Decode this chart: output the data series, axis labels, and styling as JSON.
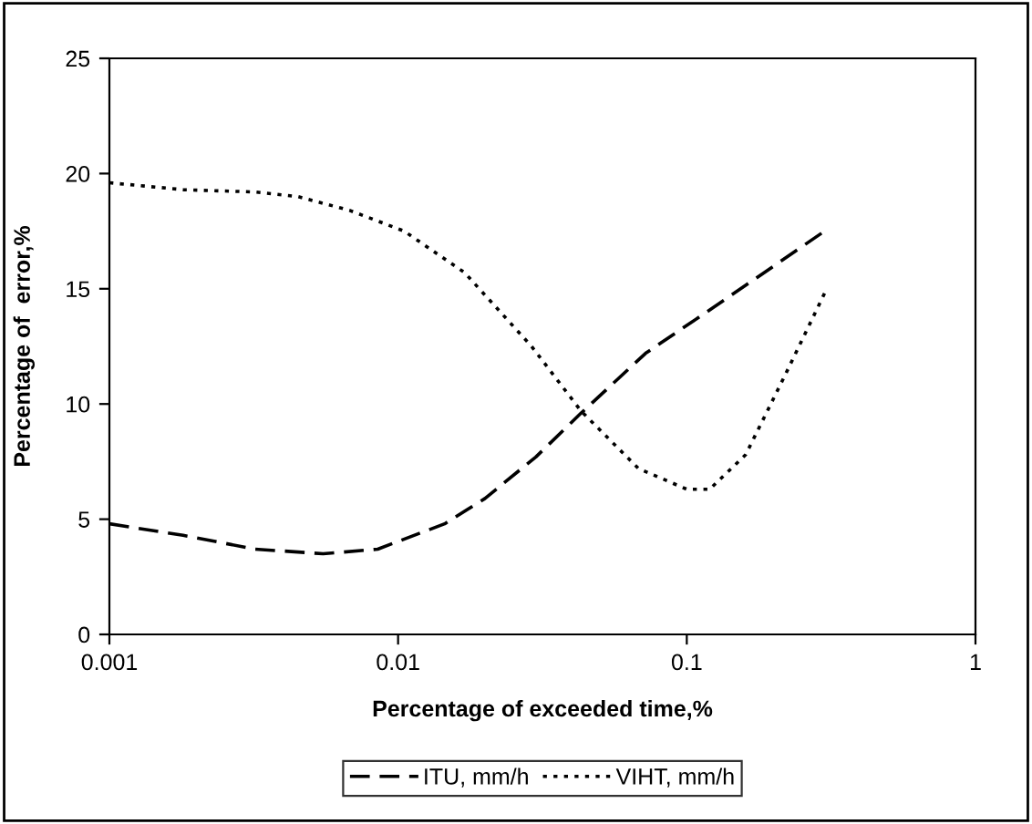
{
  "chart_data": {
    "type": "line",
    "xlabel": "Percentage of exceeded time,%",
    "ylabel": "Percentage of  error,%",
    "log": "x",
    "xlim": [
      0.001,
      1
    ],
    "xticks": [
      0.001,
      0.01,
      0.1,
      1
    ],
    "ylim": [
      0,
      25
    ],
    "yticks": [
      0,
      5,
      10,
      15,
      20,
      25
    ],
    "grid": false,
    "legend": "bottom",
    "marker": "none",
    "series": [
      {
        "name": "ITU, mm/h",
        "color": "#000000",
        "line_style": "dashed",
        "x": [
          0.001,
          0.0018,
          0.0032,
          0.0055,
          0.0085,
          0.0145,
          0.02,
          0.03,
          0.043,
          0.072,
          0.124,
          0.3
        ],
        "values": [
          4.8,
          4.3,
          3.7,
          3.5,
          3.7,
          4.8,
          5.9,
          7.7,
          9.6,
          12.2,
          14.2,
          17.5
        ]
      },
      {
        "name": "VIHT, mm/h",
        "color": "#000000",
        "line_style": "dotted",
        "x": [
          0.001,
          0.0018,
          0.0032,
          0.0045,
          0.0068,
          0.0105,
          0.017,
          0.029,
          0.043,
          0.068,
          0.1,
          0.12,
          0.16,
          0.22,
          0.3
        ],
        "values": [
          19.6,
          19.3,
          19.2,
          19.0,
          18.4,
          17.5,
          15.7,
          12.5,
          9.7,
          7.2,
          6.3,
          6.3,
          7.8,
          11.3,
          14.8
        ]
      }
    ]
  }
}
